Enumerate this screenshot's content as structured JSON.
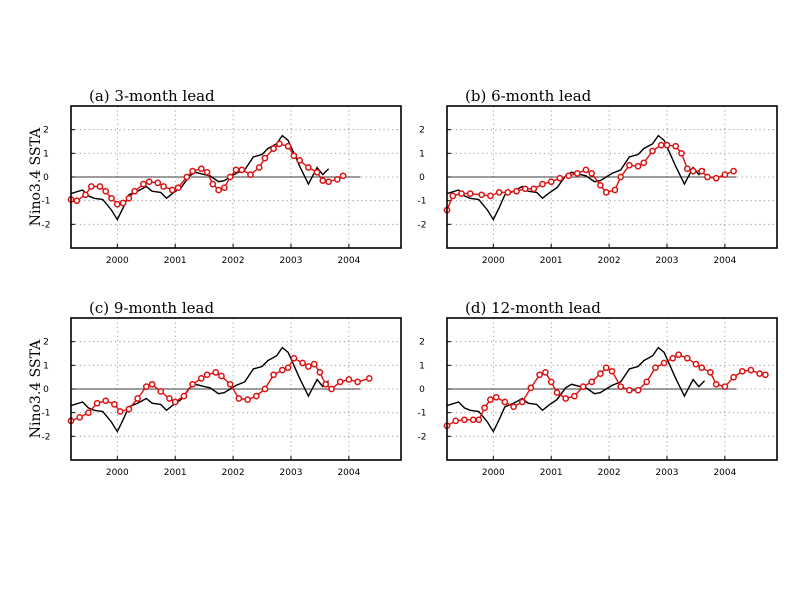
{
  "chart_data": [
    {
      "type": "line",
      "title": "(a) 3-month lead",
      "ylabel": "Nino3.4 SSTA",
      "xlim": [
        1999.2,
        2004.9
      ],
      "ylim": [
        -3,
        3
      ],
      "xticks": [
        "2000",
        "2001",
        "2002",
        "2003",
        "2004"
      ],
      "yticks": [
        "2",
        "1",
        "0",
        "-1",
        "-2"
      ],
      "grid": true,
      "series": [
        {
          "kind": "observed",
          "color": "#000000",
          "x": [
            1999.2,
            1999.4,
            1999.5,
            1999.6,
            1999.75,
            1999.9,
            2000.0,
            2000.1,
            2000.2,
            2000.35,
            2000.5,
            2000.6,
            2000.75,
            2000.85,
            2000.95,
            2001.1,
            2001.25,
            2001.35,
            2001.5,
            2001.6,
            2001.75,
            2001.85,
            2001.95,
            2002.05,
            2002.2,
            2002.35,
            2002.5,
            2002.6,
            2002.75,
            2002.85,
            2002.95,
            2003.05,
            2003.15,
            2003.3,
            2003.45,
            2003.55,
            2003.65
          ],
          "y": [
            -0.7,
            -0.55,
            -0.8,
            -0.9,
            -0.95,
            -1.4,
            -1.8,
            -1.3,
            -0.75,
            -0.6,
            -0.4,
            -0.6,
            -0.65,
            -0.9,
            -0.7,
            -0.45,
            0.05,
            0.2,
            0.1,
            0.05,
            -0.2,
            -0.15,
            0.0,
            0.15,
            0.3,
            0.85,
            0.95,
            1.2,
            1.4,
            1.75,
            1.55,
            1.0,
            0.45,
            -0.3,
            0.4,
            0.1,
            0.35
          ]
        },
        {
          "kind": "forecast",
          "color": "#dd1111",
          "x": [
            1999.2,
            1999.3,
            1999.45,
            1999.55,
            1999.7,
            1999.8,
            1999.9,
            2000.0,
            2000.1,
            2000.2,
            2000.3,
            2000.45,
            2000.55,
            2000.7,
            2000.8,
            2000.95,
            2001.05,
            2001.2,
            2001.3,
            2001.45,
            2001.55,
            2001.65,
            2001.75,
            2001.85,
            2001.95,
            2002.05,
            2002.15,
            2002.3,
            2002.45,
            2002.55,
            2002.7,
            2002.8,
            2002.95,
            2003.05,
            2003.15,
            2003.3,
            2003.45,
            2003.55,
            2003.65,
            2003.8,
            2003.9
          ],
          "y": [
            -0.95,
            -1.0,
            -0.75,
            -0.4,
            -0.4,
            -0.6,
            -0.9,
            -1.15,
            -1.1,
            -0.9,
            -0.6,
            -0.3,
            -0.2,
            -0.25,
            -0.4,
            -0.55,
            -0.45,
            0.0,
            0.25,
            0.35,
            0.2,
            -0.3,
            -0.55,
            -0.45,
            0.0,
            0.3,
            0.3,
            0.1,
            0.4,
            0.8,
            1.2,
            1.4,
            1.3,
            0.9,
            0.7,
            0.4,
            0.2,
            -0.15,
            -0.2,
            -0.1,
            0.05
          ]
        }
      ]
    },
    {
      "type": "line",
      "title": "(b) 6-month lead",
      "ylabel": "",
      "xlim": [
        1999.2,
        2004.9
      ],
      "ylim": [
        -3,
        3
      ],
      "xticks": [
        "2000",
        "2001",
        "2002",
        "2003",
        "2004"
      ],
      "yticks": [
        "2",
        "1",
        "0",
        "-1",
        "-2"
      ],
      "grid": true,
      "series": [
        {
          "kind": "observed",
          "color": "#000000",
          "x": [
            1999.2,
            1999.4,
            1999.5,
            1999.6,
            1999.75,
            1999.9,
            2000.0,
            2000.1,
            2000.2,
            2000.35,
            2000.5,
            2000.6,
            2000.75,
            2000.85,
            2000.95,
            2001.1,
            2001.25,
            2001.35,
            2001.5,
            2001.6,
            2001.75,
            2001.85,
            2001.95,
            2002.05,
            2002.2,
            2002.35,
            2002.5,
            2002.6,
            2002.75,
            2002.85,
            2002.95,
            2003.05,
            2003.15,
            2003.3,
            2003.45,
            2003.55,
            2003.65
          ],
          "y": [
            -0.7,
            -0.55,
            -0.8,
            -0.9,
            -0.95,
            -1.4,
            -1.8,
            -1.3,
            -0.75,
            -0.6,
            -0.4,
            -0.6,
            -0.65,
            -0.9,
            -0.7,
            -0.45,
            0.05,
            0.2,
            0.1,
            0.05,
            -0.2,
            -0.15,
            0.0,
            0.15,
            0.3,
            0.85,
            0.95,
            1.2,
            1.4,
            1.75,
            1.55,
            1.0,
            0.45,
            -0.3,
            0.4,
            0.1,
            0.35
          ]
        },
        {
          "kind": "forecast",
          "color": "#dd1111",
          "x": [
            1999.2,
            1999.3,
            1999.45,
            1999.6,
            1999.8,
            1999.95,
            2000.1,
            2000.25,
            2000.4,
            2000.55,
            2000.7,
            2000.85,
            2001.0,
            2001.15,
            2001.3,
            2001.45,
            2001.6,
            2001.7,
            2001.85,
            2001.95,
            2002.1,
            2002.2,
            2002.35,
            2002.5,
            2002.6,
            2002.75,
            2002.9,
            2003.0,
            2003.15,
            2003.25,
            2003.35,
            2003.45,
            2003.6,
            2003.7,
            2003.85,
            2004.0,
            2004.15
          ],
          "y": [
            -1.4,
            -0.8,
            -0.7,
            -0.7,
            -0.75,
            -0.8,
            -0.65,
            -0.65,
            -0.6,
            -0.5,
            -0.5,
            -0.3,
            -0.2,
            -0.05,
            0.05,
            0.15,
            0.3,
            0.15,
            -0.35,
            -0.65,
            -0.55,
            0.0,
            0.5,
            0.45,
            0.6,
            1.1,
            1.35,
            1.35,
            1.3,
            1.0,
            0.35,
            0.25,
            0.25,
            0.0,
            -0.05,
            0.1,
            0.25
          ]
        }
      ]
    },
    {
      "type": "line",
      "title": "(c) 9-month lead",
      "ylabel": "Nino3.4 SSTA",
      "xlim": [
        1999.2,
        2004.9
      ],
      "ylim": [
        -3,
        3
      ],
      "xticks": [
        "2000",
        "2001",
        "2002",
        "2003",
        "2004"
      ],
      "yticks": [
        "2",
        "1",
        "0",
        "-1",
        "-2"
      ],
      "grid": true,
      "series": [
        {
          "kind": "observed",
          "color": "#000000",
          "x": [
            1999.2,
            1999.4,
            1999.5,
            1999.6,
            1999.75,
            1999.9,
            2000.0,
            2000.1,
            2000.2,
            2000.35,
            2000.5,
            2000.6,
            2000.75,
            2000.85,
            2000.95,
            2001.1,
            2001.25,
            2001.35,
            2001.5,
            2001.6,
            2001.75,
            2001.85,
            2001.95,
            2002.05,
            2002.2,
            2002.35,
            2002.5,
            2002.6,
            2002.75,
            2002.85,
            2002.95,
            2003.05,
            2003.15,
            2003.3,
            2003.45,
            2003.55,
            2003.65
          ],
          "y": [
            -0.7,
            -0.55,
            -0.8,
            -0.9,
            -0.95,
            -1.4,
            -1.8,
            -1.3,
            -0.75,
            -0.6,
            -0.4,
            -0.6,
            -0.65,
            -0.9,
            -0.7,
            -0.45,
            0.05,
            0.2,
            0.1,
            0.05,
            -0.2,
            -0.15,
            0.0,
            0.15,
            0.3,
            0.85,
            0.95,
            1.2,
            1.4,
            1.75,
            1.55,
            1.0,
            0.45,
            -0.3,
            0.4,
            0.1,
            0.35
          ]
        },
        {
          "kind": "forecast",
          "color": "#dd1111",
          "x": [
            1999.2,
            1999.35,
            1999.5,
            1999.65,
            1999.8,
            1999.95,
            2000.05,
            2000.2,
            2000.35,
            2000.5,
            2000.6,
            2000.75,
            2000.9,
            2001.0,
            2001.15,
            2001.3,
            2001.45,
            2001.55,
            2001.7,
            2001.8,
            2001.95,
            2002.1,
            2002.25,
            2002.4,
            2002.55,
            2002.7,
            2002.85,
            2002.95,
            2003.05,
            2003.2,
            2003.3,
            2003.4,
            2003.5,
            2003.6,
            2003.7,
            2003.85,
            2004.0,
            2004.15,
            2004.35
          ],
          "y": [
            -1.35,
            -1.2,
            -1.0,
            -0.6,
            -0.5,
            -0.65,
            -0.95,
            -0.85,
            -0.4,
            0.1,
            0.2,
            -0.1,
            -0.4,
            -0.55,
            -0.3,
            0.2,
            0.45,
            0.6,
            0.7,
            0.55,
            0.2,
            -0.4,
            -0.45,
            -0.3,
            0.0,
            0.6,
            0.8,
            0.9,
            1.3,
            1.1,
            0.95,
            1.05,
            0.7,
            0.2,
            0.0,
            0.3,
            0.4,
            0.3,
            0.45
          ]
        }
      ]
    },
    {
      "type": "line",
      "title": "(d) 12-month lead",
      "ylabel": "",
      "xlim": [
        1999.2,
        2004.9
      ],
      "ylim": [
        -3,
        3
      ],
      "xticks": [
        "2000",
        "2001",
        "2002",
        "2003",
        "2004"
      ],
      "yticks": [
        "2",
        "1",
        "0",
        "-1",
        "-2"
      ],
      "grid": true,
      "series": [
        {
          "kind": "observed",
          "color": "#000000",
          "x": [
            1999.2,
            1999.4,
            1999.5,
            1999.6,
            1999.75,
            1999.9,
            2000.0,
            2000.1,
            2000.2,
            2000.35,
            2000.5,
            2000.6,
            2000.75,
            2000.85,
            2000.95,
            2001.1,
            2001.25,
            2001.35,
            2001.5,
            2001.6,
            2001.75,
            2001.85,
            2001.95,
            2002.05,
            2002.2,
            2002.35,
            2002.5,
            2002.6,
            2002.75,
            2002.85,
            2002.95,
            2003.05,
            2003.15,
            2003.3,
            2003.45,
            2003.55,
            2003.65
          ],
          "y": [
            -0.7,
            -0.55,
            -0.8,
            -0.9,
            -0.95,
            -1.4,
            -1.8,
            -1.3,
            -0.75,
            -0.6,
            -0.4,
            -0.6,
            -0.65,
            -0.9,
            -0.7,
            -0.45,
            0.05,
            0.2,
            0.1,
            0.05,
            -0.2,
            -0.15,
            0.0,
            0.15,
            0.3,
            0.85,
            0.95,
            1.2,
            1.4,
            1.75,
            1.55,
            1.0,
            0.45,
            -0.3,
            0.4,
            0.1,
            0.35
          ]
        },
        {
          "kind": "forecast",
          "color": "#dd1111",
          "x": [
            1999.2,
            1999.35,
            1999.5,
            1999.65,
            1999.75,
            1999.85,
            1999.95,
            2000.05,
            2000.2,
            2000.35,
            2000.5,
            2000.65,
            2000.8,
            2000.9,
            2001.0,
            2001.1,
            2001.25,
            2001.4,
            2001.55,
            2001.7,
            2001.85,
            2001.95,
            2002.05,
            2002.2,
            2002.35,
            2002.5,
            2002.65,
            2002.8,
            2002.95,
            2003.1,
            2003.2,
            2003.35,
            2003.5,
            2003.6,
            2003.75,
            2003.85,
            2004.0,
            2004.15,
            2004.3,
            2004.45,
            2004.6,
            2004.7
          ],
          "y": [
            -1.55,
            -1.35,
            -1.3,
            -1.3,
            -1.3,
            -0.8,
            -0.45,
            -0.35,
            -0.55,
            -0.75,
            -0.55,
            0.05,
            0.6,
            0.7,
            0.3,
            -0.15,
            -0.4,
            -0.3,
            0.1,
            0.3,
            0.65,
            0.9,
            0.75,
            0.1,
            -0.05,
            -0.05,
            0.3,
            0.9,
            1.1,
            1.3,
            1.45,
            1.3,
            1.05,
            0.9,
            0.7,
            0.2,
            0.1,
            0.5,
            0.75,
            0.8,
            0.65,
            0.6
          ]
        }
      ]
    }
  ]
}
